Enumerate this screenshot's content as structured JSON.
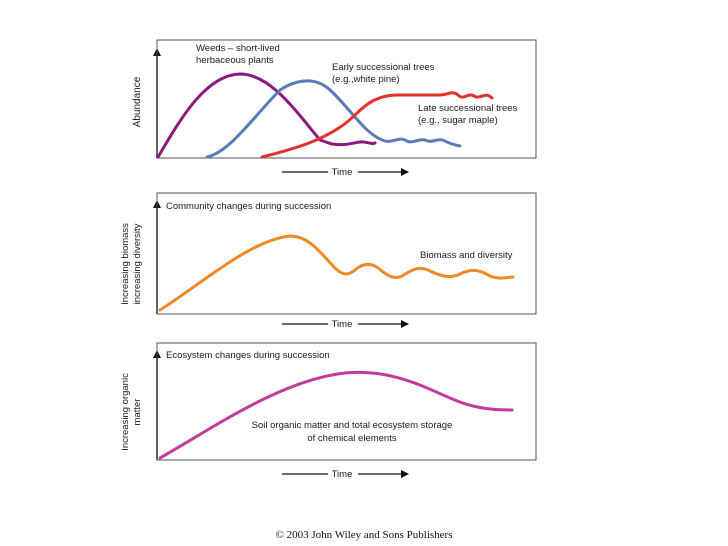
{
  "panel1": {
    "ylabel": "Abundance",
    "xlabel": "Time",
    "labels": {
      "weeds_line1": "Weeds – short-lived",
      "weeds_line2": "herbaceous plants",
      "early_line1": "Early successional trees",
      "early_line2": "(e.g.,white pine)",
      "late_line1": "Late successional trees",
      "late_line2": "(e.g., sugar maple)"
    }
  },
  "panel2": {
    "title": "Community changes during succession",
    "ylabel_line1": "Increasing biomass",
    "ylabel_line2": "increasing diversity",
    "xlabel": "Time",
    "curve_label": "Biomass and diversity"
  },
  "panel3": {
    "title": "Ecosystem changes during succession",
    "ylabel_line1": "Increasing organic",
    "ylabel_line2": "matter",
    "xlabel": "Time",
    "curve_label_line1": "Soil organic matter and total ecosystem storage",
    "curve_label_line2": "of chemical elements"
  },
  "colors": {
    "weeds": "#8b1a7e",
    "early": "#5a7ab8",
    "late": "#e0322a",
    "biomass": "#f08a24",
    "organic": "#c03c98"
  },
  "footer": {
    "copyright": "© 2003 John Wiley and Sons Publishers"
  }
}
